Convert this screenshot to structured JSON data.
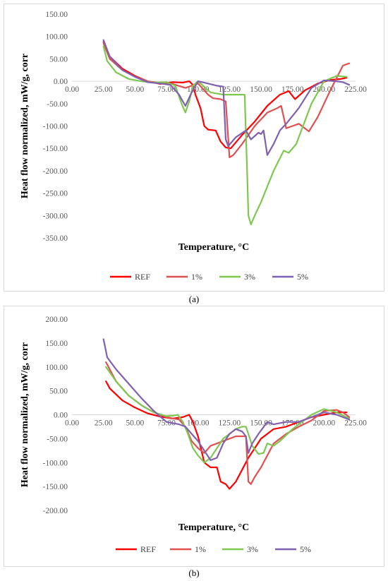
{
  "chart_data": [
    {
      "type": "line",
      "panel_label": "(a)",
      "xlabel": "Temperature, °C",
      "ylabel": "Heat flow normalized, mW/g, corr",
      "xlim": [
        0,
        225
      ],
      "ylim": [
        -350,
        150
      ],
      "xticks": [
        0,
        25,
        50,
        75,
        100,
        125,
        150,
        175,
        200,
        225
      ],
      "yticks": [
        150,
        100,
        50,
        0,
        -50,
        -100,
        -150,
        -200,
        -250,
        -300,
        -350
      ],
      "tick_format": "2 decimals",
      "grid": false,
      "legend_position": "bottom",
      "series": [
        {
          "name": "REF",
          "color": "#ff0000",
          "x": [
            25,
            30,
            40,
            50,
            60,
            70,
            80,
            88,
            93,
            96,
            98,
            102,
            105,
            108,
            114,
            118,
            122,
            126,
            135,
            145,
            155,
            165,
            172,
            177,
            185,
            195,
            205,
            213,
            218
          ],
          "y": [
            88,
            55,
            28,
            12,
            0,
            -6,
            -2,
            -3,
            0,
            -8,
            -30,
            -60,
            -100,
            -108,
            -110,
            -135,
            -148,
            -150,
            -120,
            -90,
            -55,
            -30,
            -22,
            -40,
            -20,
            -5,
            3,
            5,
            8
          ]
        },
        {
          "name": "1%",
          "color": "#e05050",
          "x": [
            25,
            30,
            40,
            50,
            60,
            70,
            80,
            90,
            100,
            108,
            112,
            118,
            122,
            125,
            128,
            135,
            145,
            155,
            163,
            166,
            170,
            175,
            180,
            188,
            195,
            205,
            215,
            220
          ],
          "y": [
            85,
            50,
            25,
            10,
            0,
            -4,
            -6,
            -15,
            -5,
            -30,
            -38,
            -40,
            -45,
            -170,
            -165,
            -140,
            -100,
            -70,
            -60,
            -55,
            -105,
            -100,
            -95,
            -112,
            -80,
            -20,
            35,
            40
          ]
        },
        {
          "name": "3%",
          "color": "#7ec850",
          "x": [
            25,
            28,
            35,
            45,
            55,
            65,
            75,
            82,
            87,
            90,
            93,
            96,
            100,
            110,
            120,
            130,
            137,
            139,
            140,
            142,
            145,
            150,
            160,
            168,
            172,
            178,
            190,
            200,
            210,
            218
          ],
          "y": [
            78,
            45,
            20,
            5,
            0,
            -3,
            -2,
            -10,
            -50,
            -70,
            -45,
            -10,
            0,
            -25,
            -30,
            -30,
            -30,
            -200,
            -300,
            -320,
            -300,
            -270,
            -200,
            -155,
            -160,
            -140,
            -50,
            0,
            12,
            10
          ]
        },
        {
          "name": "5%",
          "color": "#8060b0",
          "x": [
            25,
            30,
            40,
            50,
            60,
            70,
            78,
            85,
            90,
            95,
            100,
            108,
            115,
            120,
            122,
            124,
            130,
            138,
            142,
            148,
            150,
            152,
            155,
            160,
            165,
            170,
            180,
            190,
            200,
            210,
            215,
            220
          ],
          "y": [
            92,
            55,
            25,
            10,
            -2,
            -5,
            -8,
            -30,
            -55,
            -25,
            0,
            -5,
            -10,
            -12,
            -130,
            -145,
            -125,
            -110,
            -130,
            -115,
            -118,
            -110,
            -165,
            -140,
            -110,
            -95,
            -60,
            -15,
            2,
            0,
            -2,
            -8
          ]
        }
      ]
    },
    {
      "type": "line",
      "panel_label": "(b)",
      "xlabel": "Temperature, °C",
      "ylabel": "Heat flow normalized, mW/g, corr",
      "xlim": [
        0,
        225
      ],
      "ylim": [
        -200,
        200
      ],
      "xticks": [
        0,
        25,
        50,
        75,
        100,
        125,
        150,
        175,
        200,
        225
      ],
      "yticks": [
        200,
        150,
        100,
        50,
        0,
        -50,
        -100,
        -150,
        -200
      ],
      "tick_format": "2 decimals",
      "grid": false,
      "legend_position": "bottom",
      "series": [
        {
          "name": "REF",
          "color": "#ff0000",
          "x": [
            27,
            30,
            40,
            50,
            60,
            70,
            80,
            88,
            93,
            96,
            100,
            105,
            110,
            115,
            118,
            122,
            125,
            130,
            140,
            150,
            160,
            170,
            180,
            190,
            200,
            210,
            218
          ],
          "y": [
            70,
            55,
            30,
            15,
            3,
            -4,
            -8,
            -5,
            0,
            -15,
            -45,
            -100,
            -110,
            -110,
            -140,
            -145,
            -155,
            -140,
            -90,
            -50,
            -30,
            -25,
            -15,
            -5,
            0,
            5,
            5
          ]
        },
        {
          "name": "1%",
          "color": "#e05050",
          "x": [
            27,
            35,
            45,
            55,
            65,
            75,
            85,
            90,
            95,
            100,
            105,
            110,
            120,
            130,
            135,
            138,
            140,
            142,
            145,
            150,
            160,
            170,
            180,
            190,
            200,
            210,
            215,
            220
          ],
          "y": [
            110,
            70,
            40,
            20,
            5,
            -5,
            -10,
            -25,
            -55,
            -70,
            -80,
            -65,
            -55,
            -45,
            -45,
            -45,
            -140,
            -145,
            -130,
            -110,
            -60,
            -40,
            -25,
            -12,
            8,
            10,
            5,
            -5
          ]
        },
        {
          "name": "3%",
          "color": "#7ec850",
          "x": [
            27,
            35,
            45,
            55,
            65,
            75,
            80,
            84,
            88,
            92,
            96,
            100,
            105,
            110,
            120,
            130,
            135,
            138,
            140,
            143,
            148,
            152,
            155,
            160,
            165,
            175,
            190,
            200,
            210,
            220
          ],
          "y": [
            100,
            70,
            40,
            20,
            5,
            -3,
            -2,
            0,
            -15,
            -40,
            -70,
            -85,
            -100,
            -90,
            -50,
            -30,
            -25,
            -25,
            -40,
            -65,
            -82,
            -80,
            -60,
            -65,
            -55,
            -30,
            0,
            12,
            5,
            -8
          ]
        },
        {
          "name": "5%",
          "color": "#8060b0",
          "x": [
            25,
            28,
            35,
            45,
            55,
            65,
            75,
            85,
            90,
            95,
            100,
            105,
            110,
            115,
            120,
            125,
            130,
            135,
            138,
            140,
            143,
            148,
            155,
            160,
            170,
            180,
            190,
            200,
            210,
            215,
            220
          ],
          "y": [
            158,
            120,
            95,
            65,
            35,
            8,
            -15,
            -20,
            -25,
            -40,
            -55,
            -75,
            -95,
            -90,
            -60,
            -40,
            -30,
            -35,
            -45,
            -80,
            -60,
            -40,
            -15,
            -20,
            -15,
            -15,
            -5,
            5,
            0,
            -5,
            -10
          ]
        }
      ]
    }
  ]
}
